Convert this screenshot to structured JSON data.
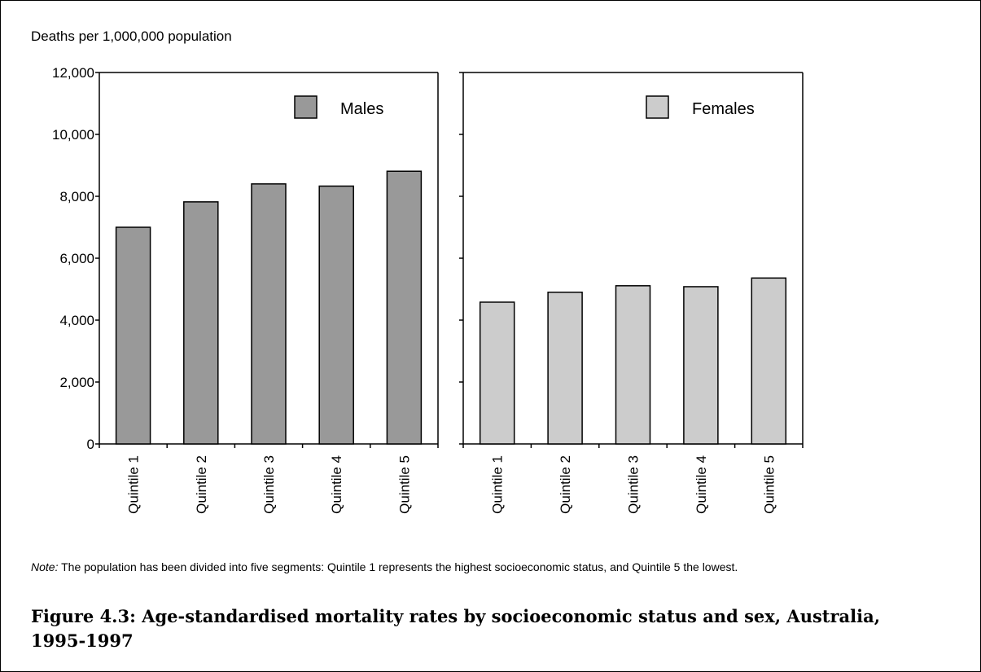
{
  "chart_data": {
    "type": "bar",
    "ylabel": "Deaths per 1,000,000 population",
    "ylim": [
      0,
      12000
    ],
    "yticks": [
      0,
      2000,
      4000,
      6000,
      8000,
      10000,
      12000
    ],
    "ytick_labels": [
      "0",
      "2,000",
      "4,000",
      "6,000",
      "8,000",
      "10,000",
      "12,000"
    ],
    "categories": [
      "Quintile 1",
      "Quintile 2",
      "Quintile 3",
      "Quintile 4",
      "Quintile 5"
    ],
    "grid": false,
    "legend_position": "top-right",
    "panels": [
      {
        "name": "Males",
        "color": "#999999",
        "values": [
          7000,
          7820,
          8400,
          8330,
          8810
        ]
      },
      {
        "name": "Females",
        "color": "#cccccc",
        "values": [
          4580,
          4900,
          5110,
          5080,
          5360
        ]
      }
    ]
  },
  "note": {
    "label": "Note:",
    "text": "The population has been divided into five segments: Quintile 1 represents the highest socioeconomic status, and Quintile 5 the lowest."
  },
  "caption": "Figure 4.3: Age-standardised mortality rates by socioeconomic status and sex, Australia, 1995-1997"
}
